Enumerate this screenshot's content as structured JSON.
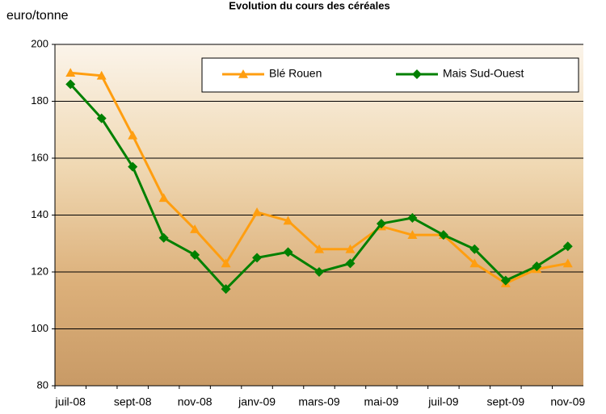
{
  "chart_data": {
    "type": "line",
    "title": "Evolution du cours des céréales",
    "y_label": "euro/tonne",
    "categories": [
      "juil-08",
      null,
      "sept-08",
      null,
      "nov-08",
      null,
      "janv-09",
      null,
      "mars-09",
      null,
      "mai-09",
      null,
      "juil-09",
      null,
      "sept-09",
      null,
      "nov-09"
    ],
    "series": [
      {
        "name": "Blé Rouen",
        "color": "#ff9e10",
        "marker": "triangle",
        "values": [
          190,
          189,
          168,
          146,
          135,
          123,
          141,
          138,
          128,
          128,
          136,
          133,
          133,
          123,
          116,
          121,
          123
        ]
      },
      {
        "name": "Mais Sud-Ouest",
        "color": "#008000",
        "marker": "diamond",
        "values": [
          186,
          174,
          157,
          132,
          126,
          114,
          125,
          127,
          120,
          123,
          137,
          139,
          133,
          128,
          117,
          122,
          129
        ]
      }
    ],
    "ylim": [
      80,
      200
    ],
    "yticks": [
      80,
      100,
      120,
      140,
      160,
      180,
      200
    ],
    "grid": true
  }
}
